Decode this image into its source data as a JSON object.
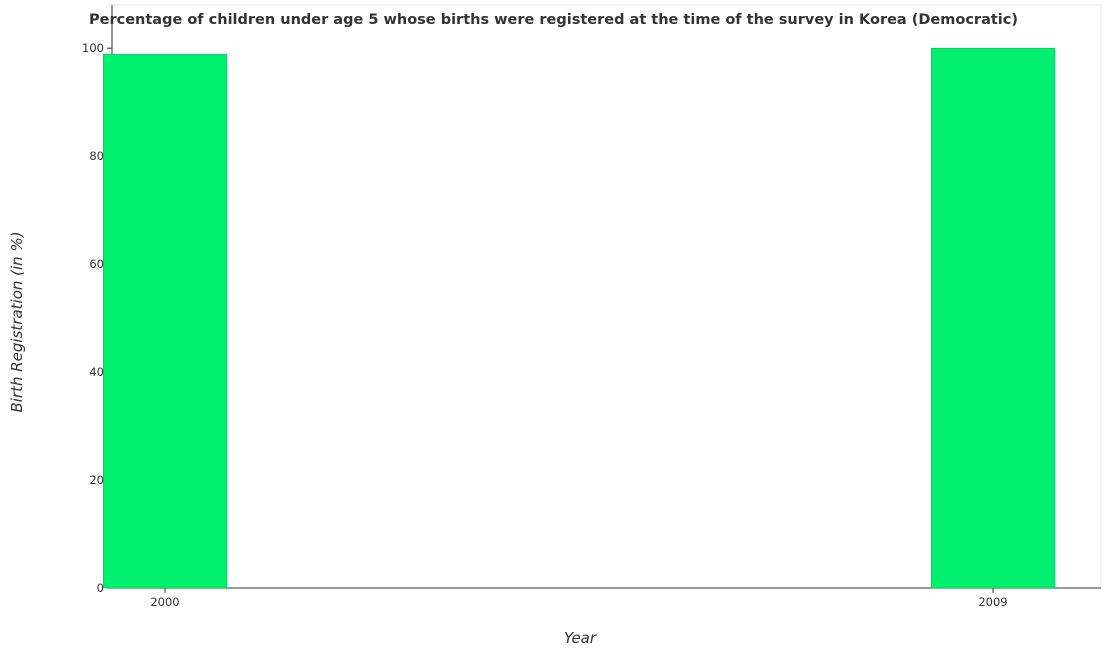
{
  "chart_data": {
    "type": "bar",
    "title": "Percentage of children under age 5 whose births were registered at the time of the survey in Korea (Democratic)",
    "xlabel": "Year",
    "ylabel": "Birth Registration (in %)",
    "categories": [
      "2000",
      "2009"
    ],
    "values": [
      98.9,
      100
    ],
    "ylim": [
      0,
      108
    ],
    "yticks": [
      0,
      20,
      40,
      60,
      80,
      100
    ],
    "grid": false,
    "legend": "none",
    "bar_color": "#00ef6e",
    "bar_edge_color": "#00b050",
    "axis_color": "#333333"
  }
}
